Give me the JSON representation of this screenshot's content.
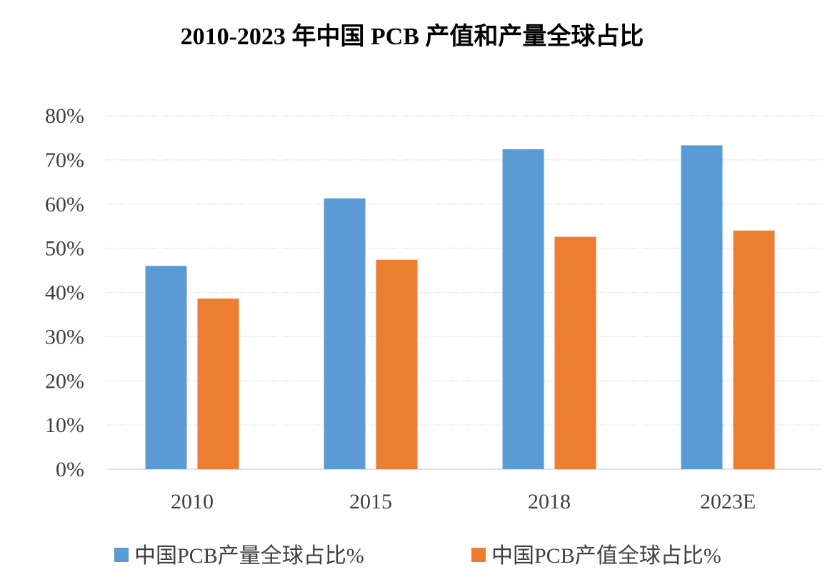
{
  "chart_data": {
    "type": "bar",
    "title": "2010-2023 年中国 PCB 产值和产量全球占比",
    "xlabel": "",
    "ylabel": "",
    "categories": [
      "2010",
      "2015",
      "2018",
      "2023E"
    ],
    "series": [
      {
        "name": "中国PCB产量全球占比%",
        "values": [
          46,
          61.3,
          72.4,
          73.3
        ],
        "color": "#5b9bd5"
      },
      {
        "name": "中国PCB产值全球占比%",
        "values": [
          38.6,
          47.4,
          52.6,
          54
        ],
        "color": "#ed7d31"
      }
    ],
    "ylim": [
      0,
      80
    ],
    "yticks": [
      0,
      10,
      20,
      30,
      40,
      50,
      60,
      70,
      80
    ],
    "ytick_suffix": "%",
    "grid": true,
    "legend_position": "bottom"
  }
}
